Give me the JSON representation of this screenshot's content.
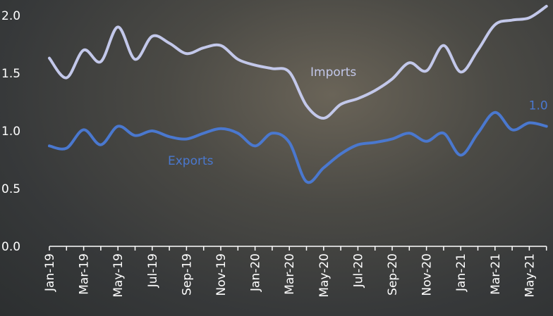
{
  "chart_data": {
    "type": "line",
    "categories": [
      "Jan-19",
      null,
      "Mar-19",
      null,
      "May-19",
      null,
      "Jul-19",
      null,
      "Sep-19",
      null,
      "Nov-19",
      null,
      "Jan-20",
      null,
      "Mar-20",
      null,
      "May-20",
      null,
      "Jul-20",
      null,
      "Sep-20",
      null,
      "Nov-20",
      null,
      "Jan-21",
      null,
      "Mar-21",
      null,
      "May-21",
      null
    ],
    "series": [
      {
        "name": "Imports",
        "color": "#c3c8ea",
        "values": [
          1.63,
          1.46,
          1.7,
          1.6,
          1.9,
          1.62,
          1.82,
          1.76,
          1.67,
          1.72,
          1.74,
          1.62,
          1.57,
          1.54,
          1.51,
          1.22,
          1.11,
          1.23,
          1.28,
          1.35,
          1.45,
          1.59,
          1.52,
          1.74,
          1.51,
          1.7,
          1.92,
          1.96,
          1.98,
          2.08
        ]
      },
      {
        "name": "Exports",
        "color": "#4a78cf",
        "values": [
          0.87,
          0.85,
          1.01,
          0.88,
          1.04,
          0.96,
          1.0,
          0.95,
          0.93,
          0.98,
          1.02,
          0.98,
          0.87,
          0.98,
          0.9,
          0.56,
          0.68,
          0.8,
          0.88,
          0.9,
          0.93,
          0.98,
          0.91,
          0.98,
          0.79,
          0.98,
          1.16,
          1.01,
          1.07,
          1.04
        ],
        "value_labels": [
          null,
          null,
          null,
          null,
          null,
          null,
          null,
          null,
          null,
          null,
          null,
          null,
          null,
          null,
          null,
          null,
          null,
          null,
          null,
          null,
          null,
          null,
          null,
          null,
          null,
          null,
          null,
          null,
          null,
          "1.0"
        ]
      }
    ],
    "ylim": [
      0,
      2.2
    ],
    "yticks": [
      {
        "value": 0,
        "label": "0.0"
      },
      {
        "value": 0.5,
        "label": "0.5"
      },
      {
        "value": 1,
        "label": "1.0"
      },
      {
        "value": 1.5,
        "label": "1.5"
      },
      {
        "value": 2,
        "label": "2.0"
      }
    ],
    "grid": false
  }
}
